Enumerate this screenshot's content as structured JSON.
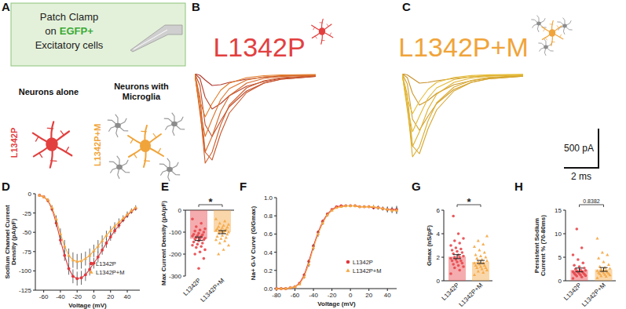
{
  "diagram": {
    "panel": "A",
    "highlight_color": "#3aa935",
    "box": [
      {
        "text": "Patch Clamp"
      },
      {
        "text": "on",
        "highlight": "EGFP+"
      },
      {
        "text": "Excitatory cells"
      }
    ],
    "groups": [
      {
        "heading": "Neurons alone",
        "label": "L1342P",
        "color": "#e2403f"
      },
      {
        "heading": "Neurons with Microglia",
        "label": "L1342P+M",
        "color": "#f0a43a"
      }
    ]
  },
  "chart_data": [
    {
      "panel": "B",
      "type": "line",
      "title": "L1342P",
      "color": "#e2403f",
      "tick_labels": false,
      "x": [
        0,
        0.3,
        0.6,
        1,
        1.5,
        2,
        3,
        4,
        5,
        7
      ],
      "xlim": [
        0,
        7
      ],
      "ylim": [
        -1250,
        0
      ],
      "series": [
        {
          "color": "#b03a2e",
          "values": [
            0,
            -20,
            -80,
            -150,
            -140,
            -110,
            -70,
            -45,
            -30,
            -15
          ]
        },
        {
          "color": "#b8432d",
          "values": [
            0,
            -60,
            -300,
            -450,
            -380,
            -280,
            -160,
            -100,
            -60,
            -30
          ]
        },
        {
          "color": "#c04c2c",
          "values": [
            0,
            -150,
            -650,
            -800,
            -600,
            -420,
            -220,
            -120,
            -70,
            -35
          ]
        },
        {
          "color": "#c8552b",
          "values": [
            0,
            -300,
            -1000,
            -1100,
            -760,
            -500,
            -240,
            -120,
            -70,
            -35
          ]
        },
        {
          "color": "#cf5e2a",
          "values": [
            0,
            -450,
            -1140,
            -1000,
            -650,
            -400,
            -180,
            -90,
            -50,
            -25
          ]
        },
        {
          "color": "#d66829",
          "values": [
            0,
            -500,
            -1000,
            -800,
            -480,
            -280,
            -120,
            -60,
            -35,
            -20
          ]
        },
        {
          "color": "#dc7228",
          "values": [
            0,
            -450,
            -800,
            -580,
            -330,
            -190,
            -80,
            -40,
            -25,
            -15
          ]
        },
        {
          "color": "#e27c28",
          "values": [
            0,
            -350,
            -550,
            -380,
            -210,
            -120,
            -50,
            -25,
            -15,
            -10
          ]
        }
      ]
    },
    {
      "panel": "C",
      "type": "line",
      "title": "L1342P+M",
      "color": "#f0a43a",
      "tick_labels": false,
      "x": [
        0,
        0.3,
        0.6,
        1,
        1.5,
        2,
        3,
        4,
        5,
        7
      ],
      "xlim": [
        0,
        7
      ],
      "ylim": [
        -1250,
        0
      ],
      "scale_bar": {
        "x": 2,
        "x_label": "2 ms",
        "y": 500,
        "y_label": "500 pA"
      },
      "series": [
        {
          "color": "#c7902a",
          "values": [
            0,
            -15,
            -60,
            -120,
            -110,
            -90,
            -60,
            -40,
            -25,
            -12
          ]
        },
        {
          "color": "#cc972b",
          "values": [
            0,
            -50,
            -250,
            -400,
            -340,
            -250,
            -140,
            -90,
            -55,
            -28
          ]
        },
        {
          "color": "#d19e2c",
          "values": [
            0,
            -130,
            -580,
            -720,
            -540,
            -380,
            -200,
            -110,
            -65,
            -32
          ]
        },
        {
          "color": "#d6a52d",
          "values": [
            0,
            -270,
            -920,
            -1020,
            -700,
            -460,
            -220,
            -110,
            -65,
            -32
          ]
        },
        {
          "color": "#dbac2e",
          "values": [
            0,
            -400,
            -1060,
            -930,
            -600,
            -370,
            -170,
            -85,
            -48,
            -24
          ]
        },
        {
          "color": "#dfb230",
          "values": [
            0,
            -460,
            -930,
            -740,
            -450,
            -260,
            -110,
            -55,
            -32,
            -18
          ]
        },
        {
          "color": "#e3b833",
          "values": [
            0,
            -410,
            -740,
            -540,
            -310,
            -180,
            -75,
            -38,
            -22,
            -14
          ]
        },
        {
          "color": "#e6bd38",
          "values": [
            0,
            -320,
            -510,
            -350,
            -200,
            -110,
            -48,
            -24,
            -14,
            -9
          ]
        }
      ]
    },
    {
      "panel": "D",
      "type": "line",
      "xlabel": "Voltage (mV)",
      "ylabel": "Sodium Channel Current Density (pA/pF)",
      "legend": "lower right",
      "x": [
        -65,
        -60,
        -55,
        -50,
        -45,
        -40,
        -35,
        -30,
        -25,
        -20,
        -15,
        -10,
        -5,
        0,
        5,
        10,
        15,
        20,
        25,
        30,
        35,
        40,
        45,
        50
      ],
      "xlim": [
        -70,
        55
      ],
      "xticks": [
        -60,
        -40,
        -20,
        0,
        20,
        40
      ],
      "ylim": [
        -125,
        0
      ],
      "yticks": [
        -125,
        -100,
        -75,
        -50,
        -25,
        0
      ],
      "series": [
        {
          "name": "L1342P",
          "color": "#e0393e",
          "marker": "circle",
          "values": [
            -2,
            -4,
            -9,
            -20,
            -38,
            -60,
            -80,
            -97,
            -107,
            -110,
            -109,
            -105,
            -98,
            -90,
            -82,
            -73,
            -64,
            -56,
            -48,
            -41,
            -34,
            -28,
            -23,
            -19
          ],
          "errors": [
            1,
            1,
            2,
            3,
            5,
            6,
            7,
            8,
            9,
            9,
            9,
            8,
            8,
            7,
            7,
            6,
            6,
            5,
            4,
            4,
            3,
            3,
            3,
            3
          ]
        },
        {
          "name": "L1342P+M",
          "color": "#f5a742",
          "marker": "triangle",
          "values": [
            -2,
            -4,
            -8,
            -18,
            -33,
            -52,
            -68,
            -80,
            -86,
            -88,
            -87,
            -84,
            -80,
            -74,
            -68,
            -61,
            -54,
            -48,
            -42,
            -37,
            -32,
            -27,
            -22,
            -18
          ],
          "errors": [
            1,
            1,
            2,
            3,
            5,
            7,
            8,
            9,
            10,
            10,
            10,
            9,
            9,
            8,
            8,
            7,
            6,
            6,
            5,
            5,
            4,
            4,
            3,
            3
          ]
        }
      ]
    },
    {
      "panel": "E",
      "type": "bar",
      "ylabel": "Max Current Density (pA/pF)",
      "annotation": "*",
      "categories": [
        "L1342P",
        "L1342P+M"
      ],
      "values": [
        -130,
        -100
      ],
      "errors": [
        8,
        7
      ],
      "colors": [
        "#e8474c",
        "#f5a742"
      ],
      "ylim": [
        -300,
        0
      ],
      "yticks": [
        -300,
        -200,
        -100,
        0
      ],
      "points": [
        [
          -40,
          -60,
          -75,
          -85,
          -90,
          -95,
          -100,
          -105,
          -110,
          -112,
          -115,
          -118,
          -120,
          -125,
          -128,
          -130,
          -132,
          -135,
          -140,
          -145,
          -150,
          -155,
          -160,
          -165,
          -170,
          -180,
          -190,
          -200,
          -220,
          -265
        ],
        [
          -40,
          -50,
          -60,
          -65,
          -70,
          -75,
          -78,
          -80,
          -85,
          -88,
          -90,
          -92,
          -95,
          -98,
          -100,
          -102,
          -105,
          -110,
          -115,
          -120,
          -125,
          -130,
          -135,
          -140,
          -150,
          -160,
          -180,
          -200
        ]
      ]
    },
    {
      "panel": "F",
      "type": "line",
      "xlabel": "Voltage (mV)",
      "ylabel": "Na+ G-V Curve (G/Gmax)",
      "legend": "lower right",
      "x": [
        -80,
        -75,
        -70,
        -65,
        -60,
        -55,
        -50,
        -45,
        -40,
        -35,
        -30,
        -25,
        -20,
        -15,
        -10,
        -5,
        0,
        5,
        10,
        15,
        20,
        25,
        30,
        35,
        40,
        45,
        50
      ],
      "xlim": [
        -80,
        50
      ],
      "xticks": [
        -80,
        -60,
        -40,
        -20,
        0,
        20,
        40
      ],
      "ylim": [
        0,
        1
      ],
      "yticks": [
        {
          "value": 0,
          "label": "0.0"
        },
        0.2,
        0.4,
        0.6,
        0.8,
        {
          "value": 1,
          "label": "1.0"
        }
      ],
      "series": [
        {
          "name": "L1342P",
          "color": "#e0393e",
          "marker": "circle",
          "values": [
            0,
            0,
            0,
            0.01,
            0.02,
            0.06,
            0.15,
            0.3,
            0.47,
            0.62,
            0.74,
            0.82,
            0.87,
            0.9,
            0.91,
            0.91,
            0.91,
            0.91,
            0.9,
            0.9,
            0.9,
            0.89,
            0.89,
            0.88,
            0.87,
            0.87,
            0.87
          ],
          "errors": [
            0,
            0,
            0,
            0,
            0.01,
            0.01,
            0.02,
            0.02,
            0.02,
            0.02,
            0.02,
            0.01,
            0.01,
            0.01,
            0.01,
            0.01,
            0.01,
            0.01,
            0.01,
            0.01,
            0.01,
            0.02,
            0.02,
            0.02,
            0.03,
            0.03,
            0.04
          ]
        },
        {
          "name": "L1342P+M",
          "color": "#f5a742",
          "marker": "triangle",
          "values": [
            0,
            0,
            0,
            0.01,
            0.02,
            0.05,
            0.13,
            0.27,
            0.45,
            0.6,
            0.72,
            0.81,
            0.86,
            0.89,
            0.9,
            0.91,
            0.91,
            0.91,
            0.9,
            0.9,
            0.9,
            0.9,
            0.89,
            0.88,
            0.87,
            0.86,
            0.86
          ],
          "errors": [
            0,
            0,
            0,
            0,
            0.01,
            0.01,
            0.02,
            0.03,
            0.03,
            0.03,
            0.02,
            0.02,
            0.01,
            0.01,
            0.01,
            0.01,
            0.01,
            0.01,
            0.01,
            0.01,
            0.01,
            0.02,
            0.02,
            0.02,
            0.03,
            0.03,
            0.04
          ]
        }
      ]
    },
    {
      "panel": "G",
      "type": "bar",
      "ylabel": "Gmax (nS/pF)",
      "annotation": "*",
      "categories": [
        "L1342P",
        "L1342P+M"
      ],
      "values": [
        2.05,
        1.6
      ],
      "errors": [
        0.17,
        0.13
      ],
      "colors": [
        "#e8474c",
        "#f5a742"
      ],
      "ylim": [
        0,
        6
      ],
      "yticks": [
        0,
        2,
        4,
        6
      ],
      "points": [
        [
          0.6,
          0.9,
          1.1,
          1.2,
          1.3,
          1.4,
          1.5,
          1.6,
          1.7,
          1.7,
          1.8,
          1.9,
          2.0,
          2.0,
          2.1,
          2.2,
          2.3,
          2.4,
          2.5,
          2.6,
          2.7,
          2.8,
          3.0,
          3.2,
          3.4,
          3.6,
          4.0,
          5.5
        ],
        [
          0.5,
          0.7,
          0.8,
          0.9,
          1.0,
          1.1,
          1.1,
          1.2,
          1.3,
          1.3,
          1.4,
          1.5,
          1.5,
          1.6,
          1.7,
          1.8,
          1.9,
          2.0,
          2.1,
          2.2,
          2.4,
          2.6,
          2.9,
          3.1,
          3.4,
          3.8
        ]
      ]
    },
    {
      "panel": "H",
      "type": "bar",
      "ylabel": "Persistent Sodium Current % (70-80ms)",
      "annotation": "0.8382",
      "categories": [
        "L1342P",
        "L1342P+M"
      ],
      "values": [
        2.3,
        2.4
      ],
      "errors": [
        0.4,
        0.4
      ],
      "colors": [
        "#e8474c",
        "#f5a742"
      ],
      "ylim": [
        0,
        15
      ],
      "yticks": [
        0,
        5,
        10,
        15
      ],
      "points": [
        [
          0.5,
          0.8,
          1.0,
          1.1,
          1.2,
          1.3,
          1.4,
          1.5,
          1.6,
          1.7,
          1.8,
          1.9,
          2.0,
          2.1,
          2.2,
          2.3,
          2.5,
          2.7,
          3.0,
          3.3,
          3.8,
          4.5,
          5.5,
          7.0,
          11.0
        ],
        [
          0.6,
          0.9,
          1.0,
          1.2,
          1.3,
          1.4,
          1.5,
          1.6,
          1.7,
          1.8,
          2.0,
          2.1,
          2.2,
          2.4,
          2.6,
          2.8,
          3.0,
          3.4,
          4.0,
          4.8,
          5.5,
          6.0,
          9.0
        ]
      ]
    }
  ]
}
